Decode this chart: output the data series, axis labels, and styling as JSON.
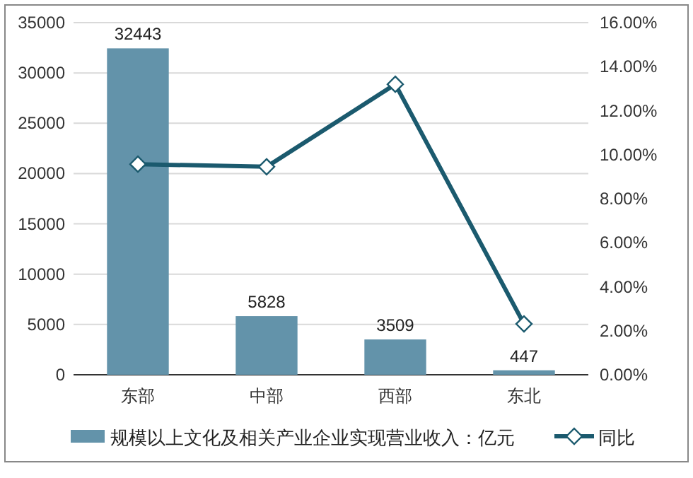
{
  "chart_data": {
    "type": "bar",
    "categories": [
      "东部",
      "中部",
      "西部",
      "东北"
    ],
    "series": [
      {
        "name": "规模以上文化及相关产业企业实现营业收入：亿元",
        "color": "#6393aa",
        "values": [
          32443,
          5828,
          3509,
          447
        ],
        "value_labels": [
          "32443",
          "5828",
          "3509",
          "447"
        ]
      },
      {
        "name": "同比",
        "type": "line",
        "axis": "y2",
        "color": "#1b5a6e",
        "marker": "diamond",
        "values": [
          9.57,
          9.45,
          13.2,
          2.31
        ]
      }
    ],
    "ylim": [
      0,
      35000
    ],
    "yticks": [
      0,
      5000,
      10000,
      15000,
      20000,
      25000,
      30000,
      35000
    ],
    "y2lim": [
      0,
      16
    ],
    "y2ticks": [
      {
        "value": 0,
        "label": "0.00%"
      },
      {
        "value": 2,
        "label": "2.00%"
      },
      {
        "value": 4,
        "label": "4.00%"
      },
      {
        "value": 6,
        "label": "6.00%"
      },
      {
        "value": 8,
        "label": "8.00%"
      },
      {
        "value": 10,
        "label": "10.00%"
      },
      {
        "value": 12,
        "label": "12.00%"
      },
      {
        "value": 14,
        "label": "14.00%"
      },
      {
        "value": 16,
        "label": "16.00%"
      }
    ],
    "grid": "y",
    "legend": "bottom"
  }
}
